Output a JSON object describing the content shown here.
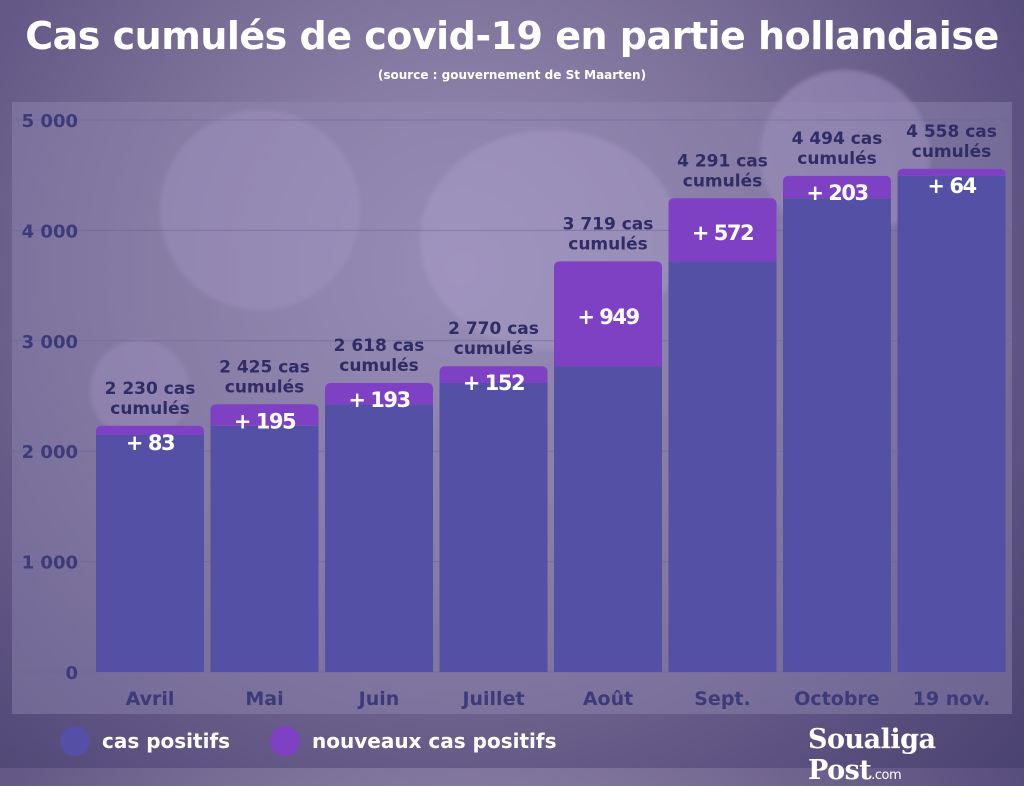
{
  "header": {
    "title": "Cas cumulés de covid-19 en partie hollandaise",
    "subtitle": "(source : gouvernement de St Maarten)"
  },
  "legend": {
    "positive_label": "cas positifs",
    "new_label": "nouveaux cas positifs"
  },
  "logo": {
    "text": "Soualiga Post",
    "suffix": ".com"
  },
  "colors": {
    "positive": "#5350a6",
    "new": "#7e41c3",
    "axis_text": "#3c3a78",
    "label_text": "#2f2c66"
  },
  "chart_data": {
    "type": "bar",
    "stacked": true,
    "title": "Cas cumulés de covid-19 en partie hollandaise",
    "subtitle": "(source : gouvernement de St Maarten)",
    "categories": [
      "Avril",
      "Mai",
      "Juin",
      "Juillet",
      "Août",
      "Sept.",
      "Octobre",
      "19 nov."
    ],
    "series": [
      {
        "name": "cas positifs",
        "values": [
          2147,
          2230,
          2425,
          2618,
          2770,
          3719,
          4291,
          4494
        ]
      },
      {
        "name": "nouveaux cas positifs",
        "values": [
          83,
          195,
          193,
          152,
          949,
          572,
          203,
          64
        ]
      }
    ],
    "totals": [
      2230,
      2425,
      2618,
      2770,
      3719,
      4291,
      4494,
      4558
    ],
    "total_labels": [
      [
        "2 230 cas",
        "cumulés"
      ],
      [
        "2 425 cas",
        "cumulés"
      ],
      [
        "2 618 cas",
        "cumulés"
      ],
      [
        "2 770 cas",
        "cumulés"
      ],
      [
        "3  719 cas",
        "cumulés"
      ],
      [
        "4 291 cas",
        "cumulés"
      ],
      [
        "4 494 cas",
        "cumulés"
      ],
      [
        "4 558 cas",
        "cumulés"
      ]
    ],
    "increment_labels": [
      "+ 83",
      "+ 195",
      "+ 193",
      "+ 152",
      "+ 949",
      "+ 572",
      "+ 203",
      "+ 64"
    ],
    "yticks": [
      0,
      1000,
      2000,
      3000,
      4000,
      5000
    ],
    "ytick_labels": [
      "0",
      "1 000",
      "2 000",
      "3 000",
      "4 000",
      "5 000"
    ],
    "ylim": [
      0,
      5000
    ],
    "xlabel": "",
    "ylabel": "",
    "grid": true,
    "legend_position": "bottom-left"
  }
}
